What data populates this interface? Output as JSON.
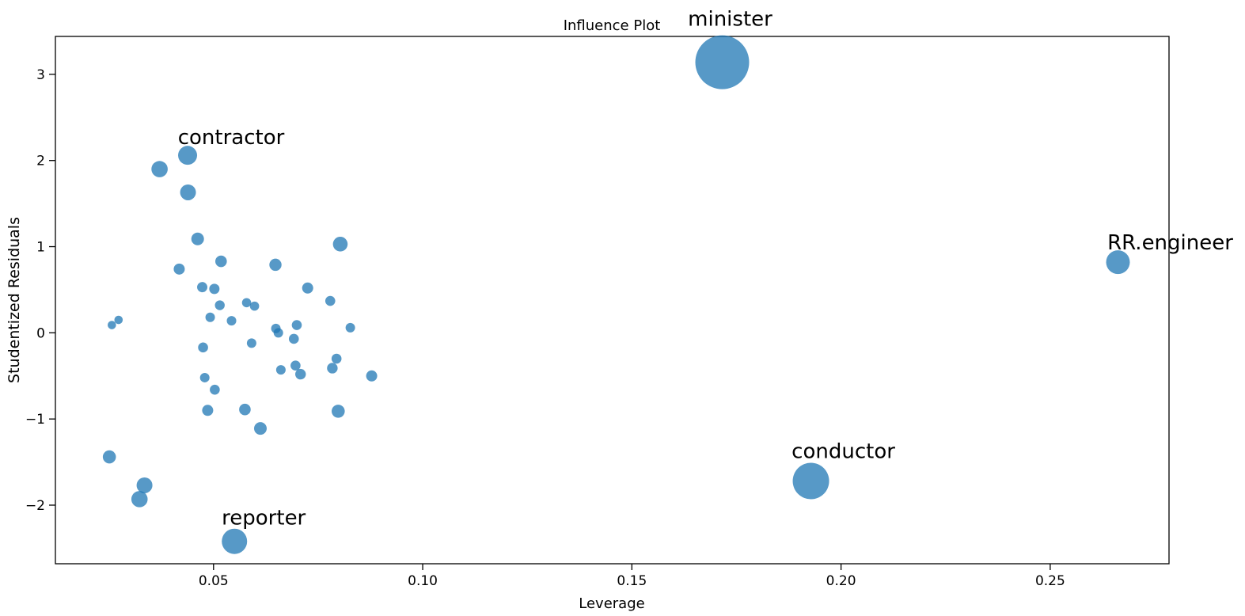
{
  "chart_data": {
    "type": "scatter",
    "title": "Influence Plot",
    "xlabel": "Leverage",
    "ylabel": "Studentized Residuals",
    "xlim": [
      0.0122,
      0.2784
    ],
    "ylim": [
      -2.68,
      3.44
    ],
    "x_ticks": [
      0.05,
      0.1,
      0.15,
      0.2,
      0.25
    ],
    "y_ticks": [
      -2,
      -1,
      0,
      1,
      2,
      3
    ],
    "grid": false,
    "legend": "none",
    "bubble_color": "#1f77b4",
    "bubble_opacity": 0.75,
    "spine_color": "#000000",
    "text_color": "#000000",
    "labeled_points": [
      {
        "label": "minister",
        "x": 0.1716,
        "y": 3.14,
        "r": 34,
        "dx": 10,
        "gap": 12
      },
      {
        "label": "contractor",
        "x": 0.0438,
        "y": 2.06,
        "r": 12,
        "dx": 55,
        "gap": 2
      },
      {
        "label": "RR.engineer",
        "x": 0.2662,
        "y": 0.82,
        "r": 15,
        "dx": 66,
        "gap": 1
      },
      {
        "label": "conductor",
        "x": 0.1928,
        "y": -1.72,
        "r": 23,
        "dx": 41,
        "gap": 6
      },
      {
        "label": "reporter",
        "x": 0.055,
        "y": -2.42,
        "r": 16,
        "dx": 37,
        "gap": 5
      }
    ],
    "points": [
      {
        "x": 0.0371,
        "y": 1.9,
        "r": 10.3
      },
      {
        "x": 0.0439,
        "y": 1.63,
        "r": 10.0
      },
      {
        "x": 0.0462,
        "y": 1.09,
        "r": 8.0
      },
      {
        "x": 0.0418,
        "y": 0.74,
        "r": 7.0
      },
      {
        "x": 0.0518,
        "y": 0.83,
        "r": 7.3
      },
      {
        "x": 0.0648,
        "y": 0.79,
        "r": 7.7
      },
      {
        "x": 0.0803,
        "y": 1.03,
        "r": 9.3
      },
      {
        "x": 0.0473,
        "y": 0.53,
        "r": 6.5
      },
      {
        "x": 0.0502,
        "y": 0.51,
        "r": 6.5
      },
      {
        "x": 0.0725,
        "y": 0.52,
        "r": 7.0
      },
      {
        "x": 0.0779,
        "y": 0.37,
        "r": 6.3
      },
      {
        "x": 0.0579,
        "y": 0.35,
        "r": 5.8
      },
      {
        "x": 0.0598,
        "y": 0.31,
        "r": 5.8
      },
      {
        "x": 0.0515,
        "y": 0.32,
        "r": 6.2
      },
      {
        "x": 0.0492,
        "y": 0.18,
        "r": 6.0
      },
      {
        "x": 0.0543,
        "y": 0.14,
        "r": 6.0
      },
      {
        "x": 0.0273,
        "y": 0.15,
        "r": 5.3
      },
      {
        "x": 0.0257,
        "y": 0.09,
        "r": 5.3
      },
      {
        "x": 0.0649,
        "y": 0.05,
        "r": 6.0
      },
      {
        "x": 0.0655,
        "y": 0.0,
        "r": 6.0
      },
      {
        "x": 0.0699,
        "y": 0.09,
        "r": 6.3
      },
      {
        "x": 0.0827,
        "y": 0.06,
        "r": 6.0
      },
      {
        "x": 0.0692,
        "y": -0.07,
        "r": 6.3
      },
      {
        "x": 0.0591,
        "y": -0.12,
        "r": 6.0
      },
      {
        "x": 0.0475,
        "y": -0.17,
        "r": 6.3
      },
      {
        "x": 0.0794,
        "y": -0.3,
        "r": 6.3
      },
      {
        "x": 0.0784,
        "y": -0.41,
        "r": 6.7
      },
      {
        "x": 0.0661,
        "y": -0.43,
        "r": 6.0
      },
      {
        "x": 0.0696,
        "y": -0.38,
        "r": 6.3
      },
      {
        "x": 0.0708,
        "y": -0.48,
        "r": 6.7
      },
      {
        "x": 0.0878,
        "y": -0.5,
        "r": 7.0
      },
      {
        "x": 0.0479,
        "y": -0.52,
        "r": 6.0
      },
      {
        "x": 0.0503,
        "y": -0.66,
        "r": 6.3
      },
      {
        "x": 0.0486,
        "y": -0.9,
        "r": 7.0
      },
      {
        "x": 0.0575,
        "y": -0.89,
        "r": 7.3
      },
      {
        "x": 0.0798,
        "y": -0.91,
        "r": 8.3
      },
      {
        "x": 0.0612,
        "y": -1.11,
        "r": 8.0
      },
      {
        "x": 0.0251,
        "y": -1.44,
        "r": 8.3
      },
      {
        "x": 0.0335,
        "y": -1.77,
        "r": 10.0
      },
      {
        "x": 0.0323,
        "y": -1.93,
        "r": 10.3
      }
    ]
  }
}
